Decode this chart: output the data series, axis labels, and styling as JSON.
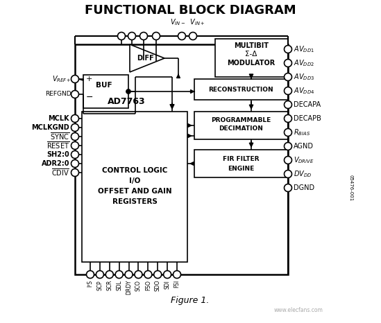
{
  "title": "FUNCTIONAL BLOCK DIAGRAM",
  "figure_caption": "Figure 1.",
  "bg_color": "#ffffff",
  "line_color": "#000000",
  "title_fontsize": 13,
  "left_pins": [
    "MCLK",
    "MCLKGND",
    "SYNC",
    "RESET",
    "SH2:0",
    "ADR2:0",
    "CDIV"
  ],
  "left_pins_overline": [
    false,
    false,
    true,
    true,
    false,
    false,
    true
  ],
  "bottom_pins": [
    "I²S",
    "SCP",
    "SCR",
    "SDL",
    "DRDY",
    "SCO",
    "FSO",
    "SDO",
    "SDI",
    "FSI"
  ],
  "right_labels": [
    [
      "AV",
      "DD1"
    ],
    [
      "AV",
      "DD2"
    ],
    [
      "AV",
      "DD3"
    ],
    [
      "AV",
      "DD4"
    ],
    [
      "DECAPA",
      ""
    ],
    [
      "DECAPB",
      ""
    ],
    [
      "R",
      "BIAS"
    ],
    [
      "AGND",
      ""
    ],
    [
      "V",
      "DRIVE"
    ],
    [
      "DV",
      "DD"
    ],
    [
      "DGND",
      ""
    ]
  ],
  "watermark": "05476-001"
}
